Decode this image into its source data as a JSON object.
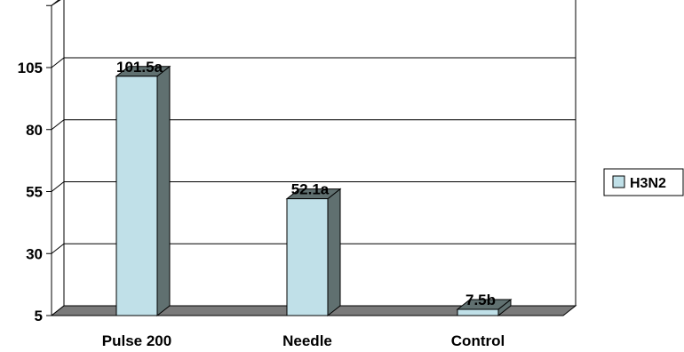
{
  "chart_data": {
    "type": "bar",
    "categories": [
      "Pulse 200",
      "Needle",
      "Control"
    ],
    "series": [
      {
        "name": "H3N2",
        "values": [
          101.5,
          52.1,
          7.5
        ],
        "labels": [
          "101.5a",
          "52.1a",
          "7.5b"
        ],
        "color": "#c0e0e8"
      }
    ],
    "yticks": [
      5,
      30,
      55,
      80,
      105
    ],
    "ylim": [
      5,
      130
    ],
    "grid": true,
    "legend_position": "right",
    "three_d": true,
    "colors": {
      "bar_front": "#c0e0e8",
      "bar_side": "#607070",
      "floor": "#7a7a7a",
      "grid": "#000000"
    }
  }
}
